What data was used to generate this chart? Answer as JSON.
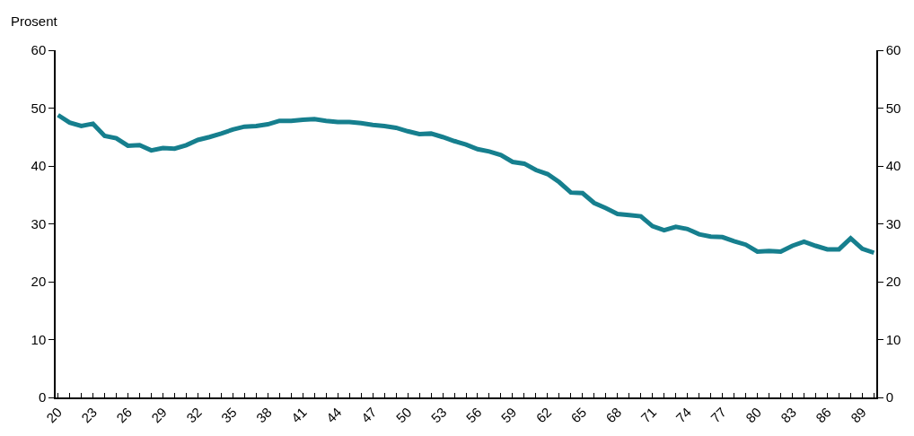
{
  "chart_data": {
    "type": "line",
    "ylabel": "Prosent",
    "categories": [
      "20",
      null,
      null,
      "23",
      null,
      null,
      "26",
      null,
      null,
      "29",
      null,
      null,
      "32",
      null,
      null,
      "35",
      null,
      null,
      "38",
      null,
      null,
      "41",
      null,
      null,
      "44",
      null,
      null,
      "47",
      null,
      null,
      "50",
      null,
      null,
      "53",
      null,
      null,
      "56",
      null,
      null,
      "59",
      null,
      null,
      "62",
      null,
      null,
      "65",
      null,
      null,
      "68",
      null,
      null,
      "71",
      null,
      null,
      "74",
      null,
      null,
      "77",
      null,
      null,
      "80",
      null,
      null,
      "83",
      null,
      null,
      "86",
      null,
      null,
      "89",
      null
    ],
    "series": [
      {
        "color": "#167f8e",
        "values": [
          48.8,
          47.5,
          46.9,
          47.3,
          45.2,
          44.8,
          43.5,
          43.6,
          42.7,
          43.1,
          43.0,
          43.6,
          44.5,
          45.0,
          45.6,
          46.3,
          46.8,
          46.9,
          47.2,
          47.8,
          47.8,
          48.0,
          48.1,
          47.8,
          47.6,
          47.6,
          47.4,
          47.1,
          46.9,
          46.6,
          46.0,
          45.5,
          45.6,
          45.0,
          44.3,
          43.7,
          42.9,
          42.5,
          41.9,
          40.7,
          40.4,
          39.3,
          38.6,
          37.2,
          35.4,
          35.3,
          33.6,
          32.7,
          31.7,
          31.5,
          31.3,
          29.6,
          28.9,
          29.5,
          29.1,
          28.2,
          27.8,
          27.7,
          27.0,
          26.4,
          25.2,
          25.3,
          25.2,
          26.2,
          26.9,
          26.2,
          25.6,
          25.6,
          27.5,
          25.7,
          25.0
        ]
      }
    ],
    "ylim": [
      0,
      60
    ],
    "yticks": [
      0,
      10,
      20,
      30,
      40,
      50,
      60
    ],
    "y2lim": [
      0,
      60
    ],
    "y2ticks": [
      0,
      10,
      20,
      30,
      40,
      50,
      60
    ],
    "legend": false,
    "marker": "none",
    "line_style": "solid"
  }
}
